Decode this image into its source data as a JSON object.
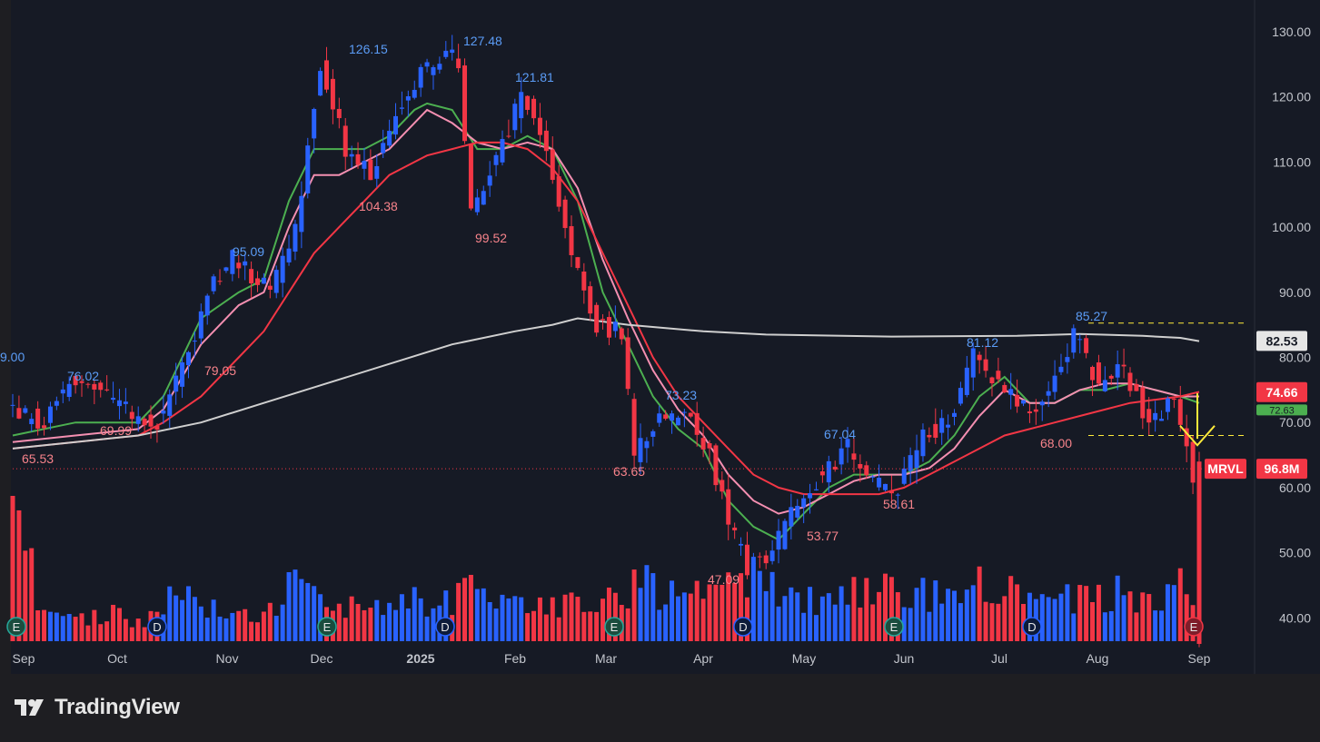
{
  "brand": {
    "name": "TradingView",
    "logo_icon": "tradingview-logo-icon"
  },
  "colors": {
    "background": "#161a25",
    "outer": "#1e1e22",
    "up": "#2962ff",
    "down": "#f23645",
    "ma_fast": "#4caf50",
    "ma_mid": "#f48fb1",
    "ma_slow": "#f23645",
    "ma_long": "#cfcfcf",
    "arrow": "#ffeb3b",
    "text": "#c2c5cc"
  },
  "chart_data": {
    "type": "candlestick",
    "ticker": "MRVL",
    "y_axis": {
      "range": [
        35,
        133
      ],
      "ticks": [
        "130.00",
        "120.00",
        "110.00",
        "100.00",
        "90.00",
        "80.00",
        "70.00",
        "60.00",
        "50.00",
        "40.00"
      ]
    },
    "x_axis": {
      "labels": [
        "Sep",
        "Oct",
        "Nov",
        "Dec",
        "2025",
        "Feb",
        "Mar",
        "Apr",
        "May",
        "Jun",
        "Jul",
        "Aug",
        "Sep"
      ],
      "bold": [
        "2025"
      ]
    },
    "price_annotations": [
      {
        "text": "9.00",
        "color": "up",
        "value": 9.0
      },
      {
        "text": "76.02",
        "color": "up",
        "value": 76.02
      },
      {
        "text": "65.53",
        "color": "down",
        "value": 65.53
      },
      {
        "text": "69.99",
        "color": "down",
        "value": 69.99
      },
      {
        "text": "79.05",
        "color": "down",
        "value": 79.05
      },
      {
        "text": "95.09",
        "color": "up",
        "value": 95.09
      },
      {
        "text": "126.15",
        "color": "up",
        "value": 126.15
      },
      {
        "text": "104.38",
        "color": "down",
        "value": 104.38
      },
      {
        "text": "127.48",
        "color": "up",
        "value": 127.48
      },
      {
        "text": "121.81",
        "color": "up",
        "value": 121.81
      },
      {
        "text": "99.52",
        "color": "down",
        "value": 99.52
      },
      {
        "text": "63.65",
        "color": "down",
        "value": 63.65
      },
      {
        "text": "73.23",
        "color": "up",
        "value": 73.23
      },
      {
        "text": "47.09",
        "color": "down",
        "value": 47.09
      },
      {
        "text": "67.04",
        "color": "up",
        "value": 67.04
      },
      {
        "text": "53.77",
        "color": "down",
        "value": 53.77
      },
      {
        "text": "58.61",
        "color": "down",
        "value": 58.61
      },
      {
        "text": "81.12",
        "color": "up",
        "value": 81.12
      },
      {
        "text": "68.00",
        "color": "down",
        "value": 68.0
      },
      {
        "text": "85.27",
        "color": "up",
        "value": 85.27
      }
    ],
    "horizontal_lines": [
      {
        "value": 85.27,
        "style": "dashed",
        "color": "#ffeb3b"
      },
      {
        "value": 68.0,
        "style": "dashed",
        "color": "#ffeb3b"
      },
      {
        "value": 62.9,
        "style": "dotted",
        "color": "#f23645"
      }
    ],
    "price_tags": [
      {
        "text": "82.53",
        "kind": "ma-long",
        "value": 82.53
      },
      {
        "text": "74.66",
        "kind": "ma-slow",
        "value": 74.66
      },
      {
        "text": "72.63",
        "kind": "ma-fast",
        "value": 72.63
      },
      {
        "text": "96.8M",
        "kind": "volume",
        "value": "96.8M"
      }
    ],
    "last_price_label": "MRVL",
    "last_price_value": 62.9,
    "event_markers": [
      {
        "label": "E",
        "kind": "earnings"
      },
      {
        "label": "D",
        "kind": "dividend"
      },
      {
        "label": "E",
        "kind": "earnings"
      },
      {
        "label": "D",
        "kind": "dividend"
      },
      {
        "label": "E",
        "kind": "earnings"
      },
      {
        "label": "D",
        "kind": "dividend"
      },
      {
        "label": "E",
        "kind": "earnings"
      },
      {
        "label": "D",
        "kind": "dividend"
      },
      {
        "label": "E",
        "kind": "earnings-upcoming"
      }
    ],
    "price_path": [
      [
        0,
        72
      ],
      [
        6,
        70
      ],
      [
        10,
        76
      ],
      [
        16,
        74
      ],
      [
        20,
        71
      ],
      [
        24,
        70
      ],
      [
        28,
        78
      ],
      [
        32,
        90
      ],
      [
        36,
        95
      ],
      [
        40,
        92
      ],
      [
        42,
        90
      ],
      [
        46,
        100
      ],
      [
        50,
        125
      ],
      [
        54,
        112
      ],
      [
        58,
        108
      ],
      [
        62,
        118
      ],
      [
        66,
        124
      ],
      [
        70,
        127
      ],
      [
        72,
        125
      ],
      [
        74,
        102
      ],
      [
        80,
        115
      ],
      [
        82,
        121
      ],
      [
        86,
        112
      ],
      [
        90,
        95
      ],
      [
        94,
        85
      ],
      [
        98,
        84
      ],
      [
        100,
        65
      ],
      [
        104,
        70
      ],
      [
        108,
        72
      ],
      [
        112,
        65
      ],
      [
        116,
        52
      ],
      [
        118,
        48
      ],
      [
        122,
        50
      ],
      [
        126,
        58
      ],
      [
        130,
        62
      ],
      [
        134,
        66
      ],
      [
        138,
        61
      ],
      [
        142,
        60
      ],
      [
        146,
        68
      ],
      [
        150,
        70
      ],
      [
        154,
        80
      ],
      [
        158,
        76
      ],
      [
        162,
        72
      ],
      [
        166,
        74
      ],
      [
        170,
        84
      ],
      [
        174,
        76
      ],
      [
        178,
        78
      ],
      [
        182,
        70
      ],
      [
        186,
        74
      ],
      [
        189,
        62
      ]
    ],
    "moving_averages": [
      {
        "kind": "ma-fast",
        "points": [
          [
            0,
            68
          ],
          [
            10,
            70
          ],
          [
            20,
            70
          ],
          [
            24,
            74
          ],
          [
            30,
            86
          ],
          [
            36,
            90
          ],
          [
            40,
            92
          ],
          [
            44,
            104
          ],
          [
            48,
            112
          ],
          [
            52,
            112
          ],
          [
            56,
            112
          ],
          [
            60,
            114
          ],
          [
            64,
            118
          ],
          [
            66,
            119
          ],
          [
            70,
            118
          ],
          [
            74,
            112
          ],
          [
            78,
            112
          ],
          [
            82,
            114
          ],
          [
            86,
            112
          ],
          [
            90,
            104
          ],
          [
            94,
            90
          ],
          [
            98,
            82
          ],
          [
            102,
            74
          ],
          [
            106,
            69
          ],
          [
            110,
            66
          ],
          [
            114,
            58
          ],
          [
            118,
            54
          ],
          [
            122,
            52
          ],
          [
            126,
            56
          ],
          [
            130,
            60
          ],
          [
            134,
            62
          ],
          [
            138,
            62
          ],
          [
            142,
            62
          ],
          [
            146,
            64
          ],
          [
            150,
            68
          ],
          [
            154,
            74
          ],
          [
            158,
            77
          ],
          [
            162,
            73
          ],
          [
            166,
            73
          ],
          [
            170,
            75
          ],
          [
            174,
            75
          ],
          [
            178,
            76
          ],
          [
            182,
            75
          ],
          [
            186,
            74
          ],
          [
            189,
            73
          ]
        ]
      },
      {
        "kind": "ma-mid",
        "points": [
          [
            0,
            67
          ],
          [
            10,
            68
          ],
          [
            20,
            69
          ],
          [
            24,
            72
          ],
          [
            30,
            82
          ],
          [
            36,
            88
          ],
          [
            40,
            90
          ],
          [
            44,
            100
          ],
          [
            48,
            108
          ],
          [
            52,
            108
          ],
          [
            56,
            110
          ],
          [
            60,
            112
          ],
          [
            64,
            116
          ],
          [
            66,
            118
          ],
          [
            70,
            116
          ],
          [
            74,
            113
          ],
          [
            78,
            112
          ],
          [
            82,
            113
          ],
          [
            86,
            112
          ],
          [
            90,
            106
          ],
          [
            94,
            95
          ],
          [
            98,
            86
          ],
          [
            102,
            78
          ],
          [
            106,
            72
          ],
          [
            110,
            68
          ],
          [
            114,
            62
          ],
          [
            118,
            58
          ],
          [
            122,
            56
          ],
          [
            126,
            57
          ],
          [
            130,
            59
          ],
          [
            134,
            61
          ],
          [
            138,
            62
          ],
          [
            142,
            62
          ],
          [
            146,
            63
          ],
          [
            150,
            66
          ],
          [
            154,
            71
          ],
          [
            158,
            75
          ],
          [
            162,
            73
          ],
          [
            166,
            73
          ],
          [
            170,
            75
          ],
          [
            174,
            76
          ],
          [
            178,
            76
          ],
          [
            182,
            75
          ],
          [
            186,
            74
          ],
          [
            189,
            74
          ]
        ]
      },
      {
        "kind": "ma-slow",
        "points": [
          [
            0,
            66
          ],
          [
            10,
            67
          ],
          [
            20,
            68
          ],
          [
            24,
            70
          ],
          [
            30,
            74
          ],
          [
            36,
            80
          ],
          [
            40,
            84
          ],
          [
            44,
            90
          ],
          [
            48,
            96
          ],
          [
            52,
            100
          ],
          [
            56,
            104
          ],
          [
            60,
            108
          ],
          [
            64,
            110
          ],
          [
            66,
            111
          ],
          [
            70,
            112
          ],
          [
            74,
            113
          ],
          [
            78,
            113
          ],
          [
            82,
            112
          ],
          [
            86,
            109
          ],
          [
            90,
            104
          ],
          [
            94,
            96
          ],
          [
            98,
            88
          ],
          [
            102,
            80
          ],
          [
            106,
            74
          ],
          [
            110,
            70
          ],
          [
            114,
            66
          ],
          [
            118,
            62
          ],
          [
            122,
            60
          ],
          [
            126,
            59
          ],
          [
            130,
            59
          ],
          [
            134,
            59
          ],
          [
            138,
            59
          ],
          [
            142,
            60
          ],
          [
            146,
            62
          ],
          [
            150,
            64
          ],
          [
            154,
            66
          ],
          [
            158,
            68
          ],
          [
            162,
            69
          ],
          [
            166,
            70
          ],
          [
            170,
            71
          ],
          [
            174,
            72
          ],
          [
            178,
            73
          ],
          [
            182,
            73.5
          ],
          [
            186,
            74
          ],
          [
            189,
            74.7
          ]
        ]
      },
      {
        "kind": "ma-long",
        "points": [
          [
            0,
            66
          ],
          [
            10,
            67
          ],
          [
            20,
            68
          ],
          [
            30,
            70
          ],
          [
            40,
            73
          ],
          [
            50,
            76
          ],
          [
            60,
            79
          ],
          [
            70,
            82
          ],
          [
            80,
            84
          ],
          [
            86,
            85
          ],
          [
            90,
            86
          ],
          [
            98,
            85
          ],
          [
            110,
            84
          ],
          [
            120,
            83.5
          ],
          [
            140,
            83.2
          ],
          [
            160,
            83.3
          ],
          [
            170,
            83.6
          ],
          [
            180,
            83.3
          ],
          [
            186,
            83
          ],
          [
            189,
            82.5
          ]
        ]
      }
    ],
    "volume_bars": [
      [
        4,
        1
      ],
      [
        10,
        0.9
      ],
      [
        16,
        1.2
      ],
      [
        20,
        0.8
      ],
      [
        24,
        1.1
      ],
      [
        26,
        2.6
      ],
      [
        30,
        1.4
      ],
      [
        34,
        1.5
      ],
      [
        38,
        1.2
      ],
      [
        42,
        1.6
      ],
      [
        44,
        2.4
      ],
      [
        48,
        1.8
      ],
      [
        52,
        1.5
      ],
      [
        56,
        1.3
      ],
      [
        60,
        1.7
      ],
      [
        64,
        1.9
      ],
      [
        68,
        1.4
      ],
      [
        72,
        2.2
      ],
      [
        76,
        1.6
      ],
      [
        80,
        1.5
      ],
      [
        84,
        1.8
      ],
      [
        88,
        1.6
      ],
      [
        92,
        1.7
      ],
      [
        96,
        1.9
      ],
      [
        100,
        2.5
      ],
      [
        104,
        2.0
      ],
      [
        108,
        1.8
      ],
      [
        112,
        2.2
      ],
      [
        116,
        2.8
      ],
      [
        118,
        3.0
      ],
      [
        122,
        2.0
      ],
      [
        126,
        1.8
      ],
      [
        130,
        1.6
      ],
      [
        134,
        2.0
      ],
      [
        138,
        2.2
      ],
      [
        142,
        1.9
      ],
      [
        146,
        2.0
      ],
      [
        150,
        1.9
      ],
      [
        154,
        2.4
      ],
      [
        158,
        2.6
      ],
      [
        162,
        1.8
      ],
      [
        166,
        1.7
      ],
      [
        170,
        2.0
      ],
      [
        174,
        1.9
      ],
      [
        178,
        2.1
      ],
      [
        182,
        1.8
      ],
      [
        186,
        2.4
      ],
      [
        188,
        1.4
      ],
      [
        189,
        5.9
      ]
    ]
  }
}
